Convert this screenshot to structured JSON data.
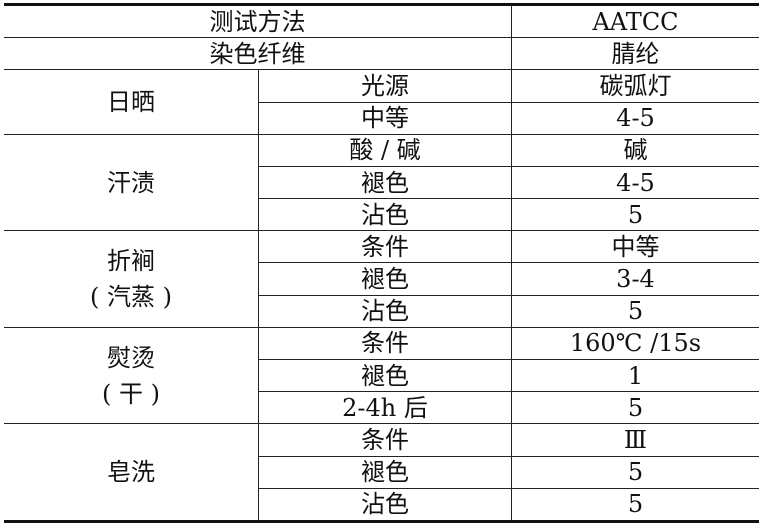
{
  "header": [
    {
      "label": "测试方法",
      "value": "AATCC"
    },
    {
      "label": "染色纤维",
      "value": "腈纶"
    }
  ],
  "groups": [
    {
      "name": "日晒",
      "rows": [
        {
          "item": "光源",
          "value": "碳弧灯"
        },
        {
          "item": "中等",
          "value": "4-5"
        }
      ]
    },
    {
      "name": "汗渍",
      "rows": [
        {
          "item": "酸 / 碱",
          "value": "碱"
        },
        {
          "item": "褪色",
          "value": "4-5"
        },
        {
          "item": "沾色",
          "value": "5"
        }
      ]
    },
    {
      "name": "折裥",
      "name2": "( 汽蒸 )",
      "rows": [
        {
          "item": "条件",
          "value": "中等"
        },
        {
          "item": "褪色",
          "value": "3-4"
        },
        {
          "item": "沾色",
          "value": "5"
        }
      ]
    },
    {
      "name": "熨烫",
      "name2": "( 干 )",
      "rows": [
        {
          "item": "条件",
          "value": "160℃ /15s"
        },
        {
          "item": "褪色",
          "value": "1"
        },
        {
          "item": "2-4h 后",
          "value": "5"
        }
      ]
    },
    {
      "name": "皂洗",
      "rows": [
        {
          "item": "条件",
          "value": "Ⅲ"
        },
        {
          "item": "褪色",
          "value": "5"
        },
        {
          "item": "沾色",
          "value": "5"
        }
      ]
    }
  ]
}
